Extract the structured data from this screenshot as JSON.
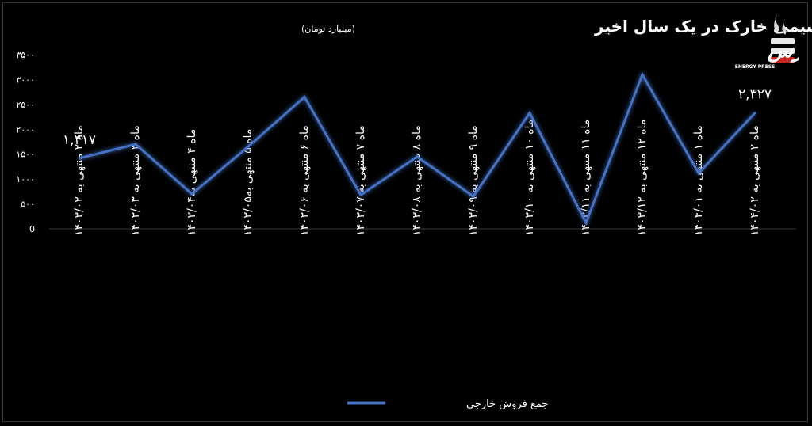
{
  "chart_data": {
    "type": "line",
    "title": "صادرات پتروشیمی خارک در یک سال اخیر",
    "subtitle": "(میلیارد تومان)",
    "categories": [
      "ماه ۲ منتهی به ۱۴۰۳/۰۲",
      "ماه ۳ منتهی به ۱۴۰۳/۰۳",
      "ماه ۴ منتهی به۱۴۰۳/۰۴",
      "ماه ۵ منتهی به۱۴۰۳/۰۵",
      "ماه ۶ منتهی به ۱۴۰۳/۰۶",
      "ماه ۷ منتهی به ۱۴۰۳/۰۷",
      "ماه ۸ منتهی به ۱۴۰۳/۰۸",
      "ماه ۹ منتهی به ۱۴۰۳/۰۹",
      "ماه ۱۰ منتهی به ۱۴۰۳/۱۰",
      "ماه ۱۱ منتهی به ۱۴۰۳/۱۱",
      "ماه ۱۲ منتهی به ۱۴۰۳/۱۲",
      "ماه ۱ منتهی به ۱۴۰۴/۰۱",
      "ماه ۲ منتهی به ۱۴۰۴/۰۲"
    ],
    "series": [
      {
        "name": "جمع فروش خارجی",
        "color": "#4472c4",
        "values": [
          1417,
          1700,
          700,
          1650,
          2650,
          680,
          1450,
          650,
          2330,
          120,
          3100,
          1120,
          2327
        ]
      }
    ],
    "data_labels": [
      {
        "index": 0,
        "text": "۱,۴۱۷"
      },
      {
        "index": 12,
        "text": "۲,۳۲۷"
      }
    ],
    "yticks": [
      {
        "value": 0,
        "label": "0"
      },
      {
        "value": 500,
        "label": "۵۰۰"
      },
      {
        "value": 1000,
        "label": "۱۰۰۰"
      },
      {
        "value": 1500,
        "label": "۱۵۰۰"
      },
      {
        "value": 2000,
        "label": "۲۰۰۰"
      },
      {
        "value": 2500,
        "label": "۲۵۰۰"
      },
      {
        "value": 3000,
        "label": "۳۰۰۰"
      },
      {
        "value": 3500,
        "label": "۳۵۰۰"
      }
    ],
    "ylim": [
      0,
      3500
    ],
    "grid": false,
    "legend_position": "bottom-center"
  },
  "logo": {
    "text": "انرژی پرس",
    "subtext": "ENERGY PRESS"
  }
}
